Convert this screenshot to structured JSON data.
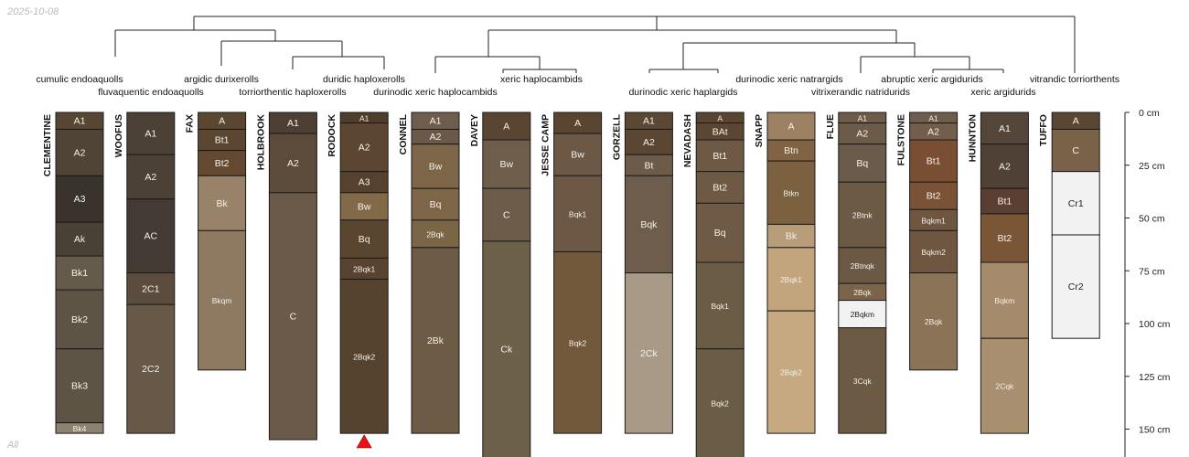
{
  "date_label": "2025-10-08",
  "footer_label": "All",
  "depth_axis": {
    "unit": "cm",
    "range": [
      0,
      150
    ],
    "ticks": [
      {
        "value": 0,
        "label": "0 cm"
      },
      {
        "value": 25,
        "label": "25 cm"
      },
      {
        "value": 50,
        "label": "50 cm"
      },
      {
        "value": 75,
        "label": "75 cm"
      },
      {
        "value": 100,
        "label": "100 cm"
      },
      {
        "value": 125,
        "label": "125 cm"
      },
      {
        "value": 150,
        "label": "150 cm"
      }
    ]
  },
  "taxa": [
    {
      "label": "cumulic endoaquolls",
      "row": 1
    },
    {
      "label": "fluvaquentic endoaquolls",
      "row": 2
    },
    {
      "label": "argidic durixerolls",
      "row": 1
    },
    {
      "label": "torriorthentic haploxerolls",
      "row": 2
    },
    {
      "label": "duridic haploxerolls",
      "row": 1
    },
    {
      "label": "durinodic xeric haplocambids",
      "row": 2
    },
    {
      "label": "xeric haplocambids",
      "row": 1
    },
    {
      "label": "durinodic xeric haplargids",
      "row": 2
    },
    {
      "label": "durinodic xeric natrargids",
      "row": 1
    },
    {
      "label": "vitrixerandic natridurids",
      "row": 2
    },
    {
      "label": "abruptic xeric argidurids",
      "row": 1
    },
    {
      "label": "xeric argidurids",
      "row": 2
    },
    {
      "label": "vitrandic torriorthents",
      "row": 1
    }
  ],
  "profiles": [
    {
      "name": "CLEMENTINE",
      "horizons": [
        {
          "name": "A1",
          "top": 0,
          "bottom": 8,
          "color": "#574634"
        },
        {
          "name": "A2",
          "top": 8,
          "bottom": 30,
          "color": "#4f4436"
        },
        {
          "name": "A3",
          "top": 30,
          "bottom": 52,
          "color": "#3a332c"
        },
        {
          "name": "Ak",
          "top": 52,
          "bottom": 68,
          "color": "#4a4136"
        },
        {
          "name": "Bk1",
          "top": 68,
          "bottom": 84,
          "color": "#645b4b"
        },
        {
          "name": "Bk2",
          "top": 84,
          "bottom": 112,
          "color": "#5e5446"
        },
        {
          "name": "Bk3",
          "top": 112,
          "bottom": 147,
          "color": "#5e5446"
        },
        {
          "name": "Bk4",
          "top": 147,
          "bottom": 152,
          "color": "#8d8270"
        }
      ]
    },
    {
      "name": "WOOFUS",
      "horizons": [
        {
          "name": "A1",
          "top": 0,
          "bottom": 20,
          "color": "#4b4137"
        },
        {
          "name": "A2",
          "top": 20,
          "bottom": 41,
          "color": "#4b4137"
        },
        {
          "name": "AC",
          "top": 41,
          "bottom": 76,
          "color": "#423a33"
        },
        {
          "name": "2C1",
          "top": 76,
          "bottom": 91,
          "color": "#5b4c3e"
        },
        {
          "name": "2C2",
          "top": 91,
          "bottom": 152,
          "color": "#675848"
        }
      ]
    },
    {
      "name": "FAX",
      "horizons": [
        {
          "name": "A",
          "top": 0,
          "bottom": 8,
          "color": "#5b4632"
        },
        {
          "name": "Bt1",
          "top": 8,
          "bottom": 18,
          "color": "#5b4631"
        },
        {
          "name": "Bt2",
          "top": 18,
          "bottom": 30,
          "color": "#62492f"
        },
        {
          "name": "Bk",
          "top": 30,
          "bottom": 56,
          "color": "#98836a"
        },
        {
          "name": "Bkqm",
          "top": 56,
          "bottom": 122,
          "color": "#8d7a61"
        }
      ]
    },
    {
      "name": "HOLBROOK",
      "horizons": [
        {
          "name": "A1",
          "top": 0,
          "bottom": 10,
          "color": "#4d3f33"
        },
        {
          "name": "A2",
          "top": 10,
          "bottom": 38,
          "color": "#5c4a3a"
        },
        {
          "name": "C",
          "top": 38,
          "bottom": 155,
          "color": "#6b5a4a"
        }
      ]
    },
    {
      "name": "RODOCK",
      "horizons": [
        {
          "name": "A1",
          "top": 0,
          "bottom": 5,
          "color": "#4f3d2c"
        },
        {
          "name": "A2",
          "top": 5,
          "bottom": 28,
          "color": "#5c4631"
        },
        {
          "name": "A3",
          "top": 28,
          "bottom": 38,
          "color": "#56412e"
        },
        {
          "name": "Bw",
          "top": 38,
          "bottom": 51,
          "color": "#826a49"
        },
        {
          "name": "Bq",
          "top": 51,
          "bottom": 69,
          "color": "#5a452f"
        },
        {
          "name": "2Bqk1",
          "top": 69,
          "bottom": 79,
          "color": "#57432f"
        },
        {
          "name": "2Bqk2",
          "top": 79,
          "bottom": 152,
          "color": "#56432f"
        }
      ]
    },
    {
      "name": "CONNEL",
      "horizons": [
        {
          "name": "A1",
          "top": 0,
          "bottom": 8,
          "color": "#6e5d4c"
        },
        {
          "name": "A2",
          "top": 8,
          "bottom": 15,
          "color": "#6a5848"
        },
        {
          "name": "Bw",
          "top": 15,
          "bottom": 36,
          "color": "#7c6647"
        },
        {
          "name": "Bq",
          "top": 36,
          "bottom": 51,
          "color": "#7c6647"
        },
        {
          "name": "2Bqk",
          "top": 51,
          "bottom": 64,
          "color": "#7a6546"
        },
        {
          "name": "2Bk",
          "top": 64,
          "bottom": 152,
          "color": "#6e5b45"
        }
      ]
    },
    {
      "name": "DAVEY",
      "horizons": [
        {
          "name": "A",
          "top": 0,
          "bottom": 13,
          "color": "#5a4532"
        },
        {
          "name": "Bw",
          "top": 13,
          "bottom": 36,
          "color": "#6f5d4b"
        },
        {
          "name": "C",
          "top": 36,
          "bottom": 61,
          "color": "#6d5c4a"
        },
        {
          "name": "Ck",
          "top": 61,
          "bottom": 170,
          "color": "#6c6049"
        }
      ]
    },
    {
      "name": "JESSE CAMP",
      "horizons": [
        {
          "name": "A",
          "top": 0,
          "bottom": 10,
          "color": "#5a4531"
        },
        {
          "name": "Bw",
          "top": 10,
          "bottom": 30,
          "color": "#6c5845"
        },
        {
          "name": "Bqk1",
          "top": 30,
          "bottom": 66,
          "color": "#6c5844"
        },
        {
          "name": "Bqk2",
          "top": 66,
          "bottom": 152,
          "color": "#73593c"
        }
      ]
    },
    {
      "name": "GORZELL",
      "horizons": [
        {
          "name": "A1",
          "top": 0,
          "bottom": 8,
          "color": "#5a4734"
        },
        {
          "name": "A2",
          "top": 8,
          "bottom": 20,
          "color": "#5b4633"
        },
        {
          "name": "Bt",
          "top": 20,
          "bottom": 30,
          "color": "#6c5b49"
        },
        {
          "name": "Bqk",
          "top": 30,
          "bottom": 76,
          "color": "#6e5d4c"
        },
        {
          "name": "2Ck",
          "top": 76,
          "bottom": 152,
          "color": "#a89a86"
        }
      ]
    },
    {
      "name": "NEVADASH",
      "horizons": [
        {
          "name": "A",
          "top": 0,
          "bottom": 5,
          "color": "#5a4532"
        },
        {
          "name": "BAt",
          "top": 5,
          "bottom": 13,
          "color": "#5c4632"
        },
        {
          "name": "Bt1",
          "top": 13,
          "bottom": 28,
          "color": "#6e5944"
        },
        {
          "name": "Bt2",
          "top": 28,
          "bottom": 43,
          "color": "#6e5944"
        },
        {
          "name": "Bq",
          "top": 43,
          "bottom": 71,
          "color": "#6f5a45"
        },
        {
          "name": "Bqk1",
          "top": 71,
          "bottom": 112,
          "color": "#6b5c45"
        },
        {
          "name": "Bqk2",
          "top": 112,
          "bottom": 170,
          "color": "#6b5c45"
        }
      ]
    },
    {
      "name": "SNAPP",
      "horizons": [
        {
          "name": "A",
          "top": 0,
          "bottom": 13,
          "color": "#9c8263"
        },
        {
          "name": "Btn",
          "top": 13,
          "bottom": 23,
          "color": "#7f6342"
        },
        {
          "name": "Btkn",
          "top": 23,
          "bottom": 53,
          "color": "#7b6140"
        },
        {
          "name": "Bk",
          "top": 53,
          "bottom": 64,
          "color": "#b89d7a"
        },
        {
          "name": "2Bqk1",
          "top": 64,
          "bottom": 94,
          "color": "#c2a47d"
        },
        {
          "name": "2Bqk2",
          "top": 94,
          "bottom": 152,
          "color": "#c6a980"
        }
      ]
    },
    {
      "name": "FLUE",
      "horizons": [
        {
          "name": "A1",
          "top": 0,
          "bottom": 5,
          "color": "#6e5b48"
        },
        {
          "name": "A2",
          "top": 5,
          "bottom": 15,
          "color": "#6c5b49"
        },
        {
          "name": "Bq",
          "top": 15,
          "bottom": 33,
          "color": "#6b5b4b"
        },
        {
          "name": "2Btnk",
          "top": 33,
          "bottom": 64,
          "color": "#6d5a45"
        },
        {
          "name": "2Btnqk",
          "top": 64,
          "bottom": 81,
          "color": "#6b5845"
        },
        {
          "name": "2Bqk",
          "top": 81,
          "bottom": 89,
          "color": "#7b6449"
        },
        {
          "name": "2Bqkm",
          "top": 89,
          "bottom": 102,
          "color": "#f2f2f2"
        },
        {
          "name": "3Cqk",
          "top": 102,
          "bottom": 152,
          "color": "#6d5a45"
        }
      ]
    },
    {
      "name": "FULSTONE",
      "horizons": [
        {
          "name": "A1",
          "top": 0,
          "bottom": 5,
          "color": "#6e5d4c"
        },
        {
          "name": "A2",
          "top": 5,
          "bottom": 13,
          "color": "#725e4a"
        },
        {
          "name": "Bt1",
          "top": 13,
          "bottom": 33,
          "color": "#7a4e33"
        },
        {
          "name": "Bt2",
          "top": 33,
          "bottom": 46,
          "color": "#7a5336"
        },
        {
          "name": "Bqkm1",
          "top": 46,
          "bottom": 56,
          "color": "#6e5641"
        },
        {
          "name": "Bqkm2",
          "top": 56,
          "bottom": 76,
          "color": "#6e5641"
        },
        {
          "name": "2Bqk",
          "top": 76,
          "bottom": 122,
          "color": "#8a7357"
        }
      ]
    },
    {
      "name": "HUNNTON",
      "horizons": [
        {
          "name": "A1",
          "top": 0,
          "bottom": 15,
          "color": "#54473a"
        },
        {
          "name": "A2",
          "top": 15,
          "bottom": 36,
          "color": "#4f4135"
        },
        {
          "name": "Bt1",
          "top": 36,
          "bottom": 48,
          "color": "#5a3e32"
        },
        {
          "name": "Bt2",
          "top": 48,
          "bottom": 71,
          "color": "#7a5636"
        },
        {
          "name": "Bqkm",
          "top": 71,
          "bottom": 107,
          "color": "#a58b6c"
        },
        {
          "name": "2Cqk",
          "top": 107,
          "bottom": 152,
          "color": "#a88f70"
        }
      ]
    },
    {
      "name": "TUFFO",
      "horizons": [
        {
          "name": "A",
          "top": 0,
          "bottom": 8,
          "color": "#5a4632"
        },
        {
          "name": "C",
          "top": 8,
          "bottom": 28,
          "color": "#7a6248"
        },
        {
          "name": "Cr1",
          "top": 28,
          "bottom": 58,
          "color": "#f2f2f2"
        },
        {
          "name": "Cr2",
          "top": 58,
          "bottom": 107,
          "color": "#f2f2f2"
        }
      ]
    }
  ],
  "markers": [
    {
      "profile": "RODOCK",
      "symbol": "triangle",
      "color": "#ee1111"
    }
  ]
}
